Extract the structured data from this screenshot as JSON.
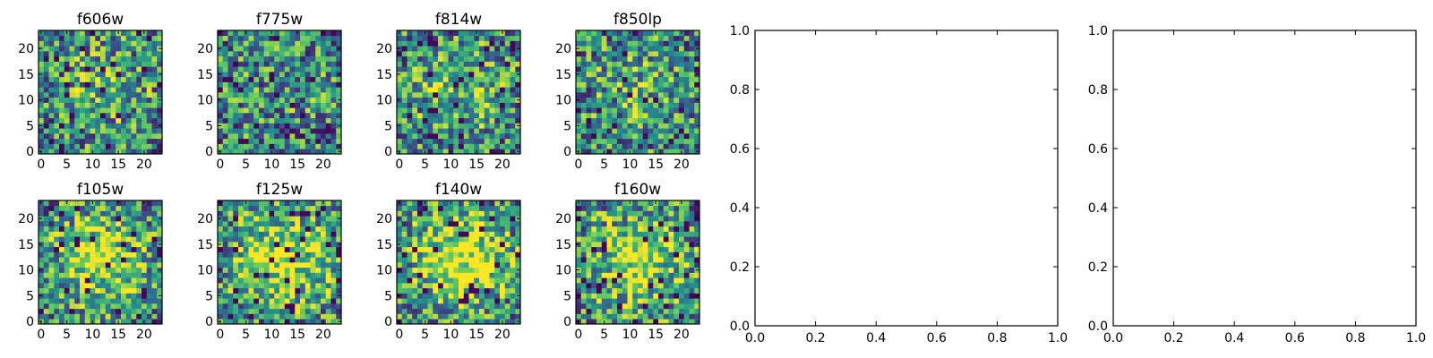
{
  "chart_data": [
    {
      "type": "heatmap",
      "title": "f606w",
      "xticks": [
        "0",
        "5",
        "10",
        "15",
        "20"
      ],
      "yticks": [
        "0",
        "5",
        "10",
        "15",
        "20"
      ],
      "xlim": [
        -0.5,
        23.5
      ],
      "ylim": [
        -0.5,
        23.5
      ],
      "grid_size": 24,
      "center_bias": 0.2
    },
    {
      "type": "heatmap",
      "title": "f775w",
      "xticks": [
        "0",
        "5",
        "10",
        "15",
        "20"
      ],
      "yticks": [
        "0",
        "5",
        "10",
        "15",
        "20"
      ],
      "xlim": [
        -0.5,
        23.5
      ],
      "ylim": [
        -0.5,
        23.5
      ],
      "grid_size": 24,
      "center_bias": 0.1
    },
    {
      "type": "heatmap",
      "title": "f814w",
      "xticks": [
        "0",
        "5",
        "10",
        "15",
        "20"
      ],
      "yticks": [
        "0",
        "5",
        "10",
        "15",
        "20"
      ],
      "xlim": [
        -0.5,
        23.5
      ],
      "ylim": [
        -0.5,
        23.5
      ],
      "grid_size": 24,
      "center_bias": 0.25
    },
    {
      "type": "heatmap",
      "title": "f850lp",
      "xticks": [
        "0",
        "5",
        "10",
        "15",
        "20"
      ],
      "yticks": [
        "0",
        "5",
        "10",
        "15",
        "20"
      ],
      "xlim": [
        -0.5,
        23.5
      ],
      "ylim": [
        -0.5,
        23.5
      ],
      "grid_size": 24,
      "center_bias": 0.2
    },
    {
      "type": "heatmap",
      "title": "f105w",
      "xticks": [
        "0",
        "5",
        "10",
        "15",
        "20"
      ],
      "yticks": [
        "0",
        "5",
        "10",
        "15",
        "20"
      ],
      "xlim": [
        -0.5,
        23.5
      ],
      "ylim": [
        -0.5,
        23.5
      ],
      "grid_size": 24,
      "center_bias": 0.45
    },
    {
      "type": "heatmap",
      "title": "f125w",
      "xticks": [
        "0",
        "5",
        "10",
        "15",
        "20"
      ],
      "yticks": [
        "0",
        "5",
        "10",
        "15",
        "20"
      ],
      "xlim": [
        -0.5,
        23.5
      ],
      "ylim": [
        -0.5,
        23.5
      ],
      "grid_size": 24,
      "center_bias": 0.5
    },
    {
      "type": "heatmap",
      "title": "f140w",
      "xticks": [
        "0",
        "5",
        "10",
        "15",
        "20"
      ],
      "yticks": [
        "0",
        "5",
        "10",
        "15",
        "20"
      ],
      "xlim": [
        -0.5,
        23.5
      ],
      "ylim": [
        -0.5,
        23.5
      ],
      "grid_size": 24,
      "center_bias": 0.55
    },
    {
      "type": "heatmap",
      "title": "f160w",
      "xticks": [
        "0",
        "5",
        "10",
        "15",
        "20"
      ],
      "yticks": [
        "0",
        "5",
        "10",
        "15",
        "20"
      ],
      "xlim": [
        -0.5,
        23.5
      ],
      "ylim": [
        -0.5,
        23.5
      ],
      "grid_size": 24,
      "center_bias": 0.45
    },
    {
      "type": "line",
      "title": "",
      "xlim": [
        0.0,
        1.0
      ],
      "ylim": [
        0.0,
        1.0
      ],
      "xticks": [
        "0.0",
        "0.2",
        "0.4",
        "0.6",
        "0.8",
        "1.0"
      ],
      "yticks": [
        "0.0",
        "0.2",
        "0.4",
        "0.6",
        "0.8",
        "1.0"
      ],
      "series": []
    },
    {
      "type": "line",
      "title": "",
      "xlim": [
        0.0,
        1.0
      ],
      "ylim": [
        0.0,
        1.0
      ],
      "xticks": [
        "0.0",
        "0.2",
        "0.4",
        "0.6",
        "0.8",
        "1.0"
      ],
      "yticks": [
        "0.0",
        "0.2",
        "0.4",
        "0.6",
        "0.8",
        "1.0"
      ],
      "series": []
    }
  ],
  "colormap": [
    "#440154",
    "#3b528b",
    "#21918c",
    "#5ec962",
    "#fde725"
  ]
}
